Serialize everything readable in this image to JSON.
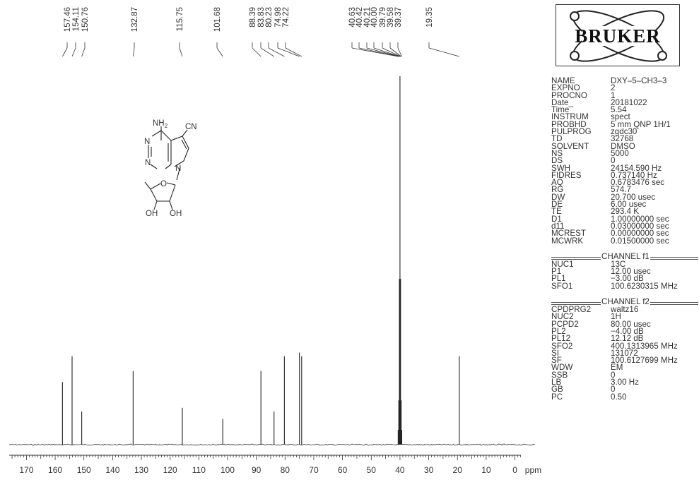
{
  "chart_data": {
    "type": "line",
    "xlabel": "ppm",
    "xlim": [
      176,
      -7
    ],
    "x_ticks": [
      170,
      160,
      150,
      140,
      130,
      120,
      110,
      100,
      90,
      80,
      70,
      60,
      50,
      40,
      30,
      20,
      10,
      0
    ],
    "peak_labels": [
      "157.46",
      "154.11",
      "150.76",
      "132.87",
      "115.75",
      "101.68",
      "88.39",
      "83.83",
      "80.23",
      "74.98",
      "74.22",
      "40.63",
      "40.42",
      "40.21",
      "40.00",
      "39.79",
      "39.58",
      "39.37",
      "19.35"
    ],
    "peaks": [
      {
        "ppm": 157.46,
        "intensity": 0.17
      },
      {
        "ppm": 154.11,
        "intensity": 0.24
      },
      {
        "ppm": 150.76,
        "intensity": 0.09
      },
      {
        "ppm": 132.87,
        "intensity": 0.2
      },
      {
        "ppm": 115.75,
        "intensity": 0.1
      },
      {
        "ppm": 101.68,
        "intensity": 0.07
      },
      {
        "ppm": 88.39,
        "intensity": 0.2
      },
      {
        "ppm": 83.83,
        "intensity": 0.09
      },
      {
        "ppm": 80.23,
        "intensity": 0.24
      },
      {
        "ppm": 74.98,
        "intensity": 0.25
      },
      {
        "ppm": 74.22,
        "intensity": 0.24
      },
      {
        "ppm": 40.63,
        "intensity": 0.04
      },
      {
        "ppm": 40.42,
        "intensity": 0.12
      },
      {
        "ppm": 40.21,
        "intensity": 0.45
      },
      {
        "ppm": 40.0,
        "intensity": 1.0
      },
      {
        "ppm": 39.79,
        "intensity": 0.45
      },
      {
        "ppm": 39.58,
        "intensity": 0.12
      },
      {
        "ppm": 39.37,
        "intensity": 0.04
      },
      {
        "ppm": 19.35,
        "intensity": 0.24
      }
    ]
  },
  "molecule": {
    "labels": {
      "nh2": "NH",
      "nh2_sub": "2",
      "cn": "CN",
      "n1": "N",
      "n2": "N",
      "n3": "N",
      "o": "O",
      "oh1": "OH",
      "oh2": "OH"
    }
  },
  "logo": {
    "text": "BRUKER"
  },
  "params": [
    {
      "name": "NAME",
      "value": "DXY–5–CH3–3"
    },
    {
      "name": "EXPNO",
      "value": "2"
    },
    {
      "name": "PROCNO",
      "value": "1"
    },
    {
      "name": "Date_",
      "value": "20181022"
    },
    {
      "name": "Time",
      "value": "5.54"
    },
    {
      "name": "INSTRUM",
      "value": "spect"
    },
    {
      "name": "PROBHD",
      "value": "5 mm QNP 1H/1"
    },
    {
      "name": "PULPROG",
      "value": "zgdc30"
    },
    {
      "name": "TD",
      "value": "32768"
    },
    {
      "name": "SOLVENT",
      "value": "DMSO"
    },
    {
      "name": "NS",
      "value": "5000"
    },
    {
      "name": "DS",
      "value": "0"
    },
    {
      "name": "SWH",
      "value": "24154.590 Hz"
    },
    {
      "name": "FIDRES",
      "value": "0.737140 Hz"
    },
    {
      "name": "AQ",
      "value": "0.6783476 sec"
    },
    {
      "name": "RG",
      "value": "574.7"
    },
    {
      "name": "DW",
      "value": "20.700 usec"
    },
    {
      "name": "DE",
      "value": "6.00 usec"
    },
    {
      "name": "TE",
      "value": "293.4 K"
    },
    {
      "name": "D1",
      "value": "1.00000000 sec"
    },
    {
      "name": "d11",
      "value": "0.03000000 sec"
    },
    {
      "name": "MCREST",
      "value": "0.00000000 sec"
    },
    {
      "name": "MCWRK",
      "value": "0.01500000 sec"
    }
  ],
  "channel1": {
    "label": "CHANNEL f1",
    "params": [
      {
        "name": "NUC1",
        "value": "13C"
      },
      {
        "name": "P1",
        "value": "12.00 usec"
      },
      {
        "name": "PL1",
        "value": "−3.00 dB"
      },
      {
        "name": "SFO1",
        "value": "100.6230315 MHz"
      }
    ]
  },
  "channel2": {
    "label": "CHANNEL f2",
    "params": [
      {
        "name": "CPDPRG2",
        "value": "waltz16"
      },
      {
        "name": "NUC2",
        "value": "1H"
      },
      {
        "name": "PCPD2",
        "value": "80.00 usec"
      },
      {
        "name": "PL2",
        "value": "−4.00 dB"
      },
      {
        "name": "PL12",
        "value": "12.12 dB"
      },
      {
        "name": "SFO2",
        "value": "400.1313965 MHz"
      },
      {
        "name": "SI",
        "value": "131072"
      },
      {
        "name": "SF",
        "value": "100.6127699 MHz"
      },
      {
        "name": "WDW",
        "value": "EM"
      },
      {
        "name": "SSB",
        "value": "0"
      },
      {
        "name": "LB",
        "value": "3.00 Hz"
      },
      {
        "name": "GB",
        "value": "0"
      },
      {
        "name": "PC",
        "value": "0.50"
      }
    ]
  }
}
